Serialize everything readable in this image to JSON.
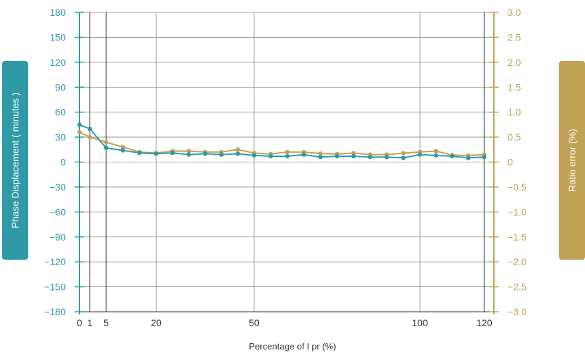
{
  "chart_data": {
    "type": "line",
    "xlabel": "Percentage of I pr (%)",
    "ylabel_left": "Phase Displacement ( minutes )",
    "ylabel_right": "Ratio error (%)",
    "x_ticks": [
      0,
      1,
      5,
      20,
      50,
      100,
      120
    ],
    "x_tick_labels": [
      "0",
      "1",
      "5",
      "20",
      "50",
      "100",
      "120"
    ],
    "xlim": [
      0,
      120
    ],
    "y_left_ticks": [
      180,
      150,
      120,
      90,
      60,
      30,
      0,
      -30,
      -60,
      -90,
      -120,
      -150,
      -180
    ],
    "y_left_tick_labels": [
      "180",
      "150",
      "120",
      "90",
      "60",
      "30",
      "0",
      "−30",
      "−60",
      "−90",
      "−120",
      "−150",
      "−180"
    ],
    "y_left_lim": [
      -180,
      180
    ],
    "y_right_ticks": [
      3.0,
      2.5,
      2.0,
      1.5,
      1.0,
      0.5,
      0,
      -0.5,
      -1.0,
      -1.5,
      -2.0,
      -2.5,
      -3.0
    ],
    "y_right_tick_labels": [
      "3.0",
      "2.5",
      "2.0",
      "1.5",
      "1.0",
      "0.5",
      "0",
      "−0.5",
      "−1.0",
      "−1.5",
      "−2.0",
      "−2.5",
      "−3.0"
    ],
    "y_right_lim": [
      -3,
      3
    ],
    "grid": true,
    "series": [
      {
        "axis": "left",
        "color": "#2e9aa8",
        "x": [
          0,
          1,
          5,
          10,
          15,
          20,
          25,
          30,
          35,
          40,
          45,
          50,
          55,
          60,
          65,
          70,
          75,
          80,
          85,
          90,
          95,
          100,
          105,
          110,
          115,
          120
        ],
        "y": [
          45,
          40,
          17,
          14,
          11,
          10,
          11,
          9,
          10,
          9,
          10,
          8,
          7,
          7,
          9,
          6,
          7,
          7,
          6,
          6,
          5,
          9,
          8,
          7,
          5,
          6
        ]
      },
      {
        "axis": "right",
        "color": "#c1a153",
        "x": [
          0,
          1,
          5,
          10,
          15,
          20,
          25,
          30,
          35,
          40,
          45,
          50,
          55,
          60,
          65,
          70,
          75,
          80,
          85,
          90,
          95,
          100,
          105,
          110,
          115,
          120
        ],
        "y": [
          0.6,
          0.5,
          0.4,
          0.3,
          0.2,
          0.18,
          0.22,
          0.22,
          0.2,
          0.2,
          0.25,
          0.18,
          0.16,
          0.2,
          0.2,
          0.17,
          0.16,
          0.18,
          0.15,
          0.15,
          0.18,
          0.2,
          0.22,
          0.14,
          0.13,
          0.15
        ]
      }
    ]
  }
}
